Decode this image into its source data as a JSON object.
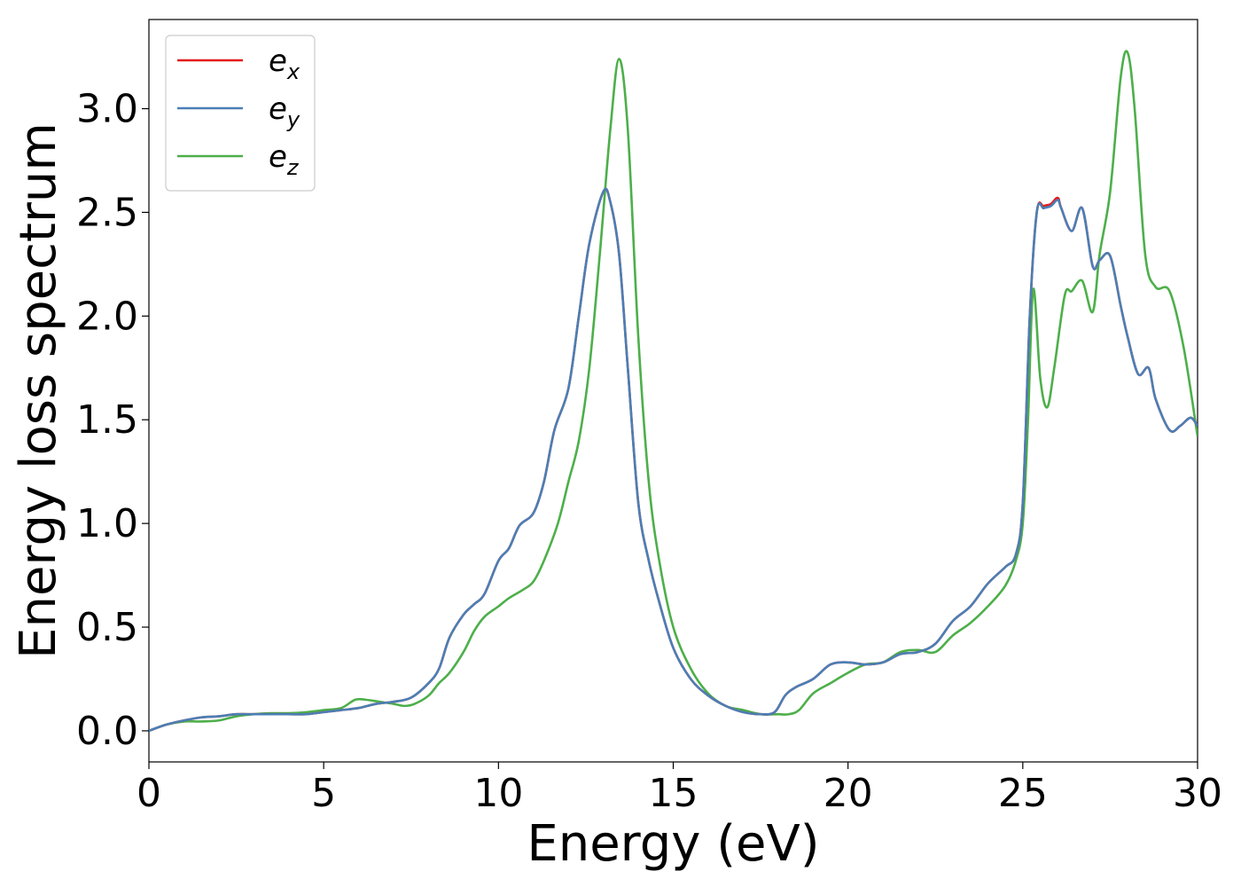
{
  "chart_data": {
    "type": "line",
    "xlabel": "Energy (eV)",
    "ylabel": "Energy loss spectrum",
    "xlim": [
      0,
      30
    ],
    "ylim": [
      -0.15,
      3.43
    ],
    "xticks": [
      "0",
      "5",
      "10",
      "15",
      "20",
      "25",
      "30"
    ],
    "yticks": [
      "0.0",
      "0.5",
      "1.0",
      "1.5",
      "2.0",
      "2.5",
      "3.0"
    ],
    "grid": false,
    "legend_position": "top-left",
    "series": [
      {
        "name": "e_x",
        "legend_base": "e",
        "legend_sub": "x",
        "color": "#e41a1c",
        "x": [
          0,
          0.5,
          1,
          1.5,
          2,
          2.5,
          3,
          3.5,
          4,
          4.5,
          5,
          5.5,
          6,
          6.5,
          7,
          7.5,
          8,
          8.3,
          8.6,
          9,
          9.3,
          9.6,
          10,
          10.3,
          10.6,
          11,
          11.3,
          11.6,
          12,
          12.3,
          12.6,
          13,
          13.2,
          13.45,
          13.7,
          14,
          14.3,
          14.6,
          15,
          15.5,
          16,
          16.5,
          17,
          17.5,
          17.9,
          18.2,
          18.5,
          19,
          19.5,
          20,
          20.5,
          21,
          21.5,
          22,
          22.5,
          23,
          23.5,
          24,
          24.5,
          24.8,
          25,
          25.2,
          25.4,
          25.6,
          25.8,
          26,
          26.1,
          26.4,
          26.7,
          27,
          27.2,
          27.5,
          27.8,
          28,
          28.3,
          28.6,
          28.8,
          29.2,
          29.5,
          29.8,
          30
        ],
        "y": [
          0,
          0.03,
          0.05,
          0.065,
          0.07,
          0.08,
          0.08,
          0.08,
          0.08,
          0.08,
          0.09,
          0.1,
          0.11,
          0.13,
          0.14,
          0.16,
          0.23,
          0.3,
          0.45,
          0.56,
          0.61,
          0.66,
          0.82,
          0.88,
          0.99,
          1.05,
          1.2,
          1.45,
          1.65,
          2.0,
          2.35,
          2.6,
          2.55,
          2.3,
          1.75,
          1.1,
          0.82,
          0.62,
          0.4,
          0.25,
          0.17,
          0.12,
          0.09,
          0.08,
          0.09,
          0.17,
          0.21,
          0.25,
          0.32,
          0.33,
          0.32,
          0.33,
          0.37,
          0.38,
          0.42,
          0.53,
          0.6,
          0.71,
          0.79,
          0.85,
          1.1,
          2.0,
          2.5,
          2.53,
          2.54,
          2.57,
          2.52,
          2.41,
          2.52,
          2.24,
          2.27,
          2.29,
          2.05,
          1.9,
          1.72,
          1.75,
          1.6,
          1.45,
          1.47,
          1.51,
          1.47
        ]
      },
      {
        "name": "e_y",
        "legend_base": "e",
        "legend_sub": "y",
        "color": "#4a7fb5",
        "x": [
          0,
          0.5,
          1,
          1.5,
          2,
          2.5,
          3,
          3.5,
          4,
          4.5,
          5,
          5.5,
          6,
          6.5,
          7,
          7.5,
          8,
          8.3,
          8.6,
          9,
          9.3,
          9.6,
          10,
          10.3,
          10.6,
          11,
          11.3,
          11.6,
          12,
          12.3,
          12.6,
          13,
          13.2,
          13.45,
          13.7,
          14,
          14.3,
          14.6,
          15,
          15.5,
          16,
          16.5,
          17,
          17.5,
          17.9,
          18.2,
          18.5,
          19,
          19.5,
          20,
          20.5,
          21,
          21.5,
          22,
          22.5,
          23,
          23.5,
          24,
          24.5,
          24.8,
          25,
          25.2,
          25.4,
          25.6,
          25.8,
          26,
          26.1,
          26.4,
          26.7,
          27,
          27.2,
          27.5,
          27.8,
          28,
          28.3,
          28.6,
          28.8,
          29.2,
          29.5,
          29.8,
          30
        ],
        "y": [
          0,
          0.03,
          0.05,
          0.065,
          0.07,
          0.08,
          0.08,
          0.08,
          0.08,
          0.08,
          0.09,
          0.1,
          0.11,
          0.13,
          0.14,
          0.16,
          0.23,
          0.3,
          0.45,
          0.56,
          0.61,
          0.66,
          0.82,
          0.88,
          0.99,
          1.05,
          1.2,
          1.45,
          1.65,
          2.0,
          2.35,
          2.6,
          2.55,
          2.3,
          1.75,
          1.1,
          0.82,
          0.62,
          0.4,
          0.25,
          0.17,
          0.12,
          0.09,
          0.08,
          0.09,
          0.17,
          0.21,
          0.25,
          0.32,
          0.33,
          0.32,
          0.33,
          0.37,
          0.38,
          0.42,
          0.53,
          0.6,
          0.71,
          0.79,
          0.85,
          1.1,
          2.0,
          2.5,
          2.52,
          2.53,
          2.56,
          2.52,
          2.41,
          2.52,
          2.24,
          2.27,
          2.29,
          2.05,
          1.9,
          1.72,
          1.75,
          1.6,
          1.45,
          1.47,
          1.51,
          1.47
        ]
      },
      {
        "name": "e_z",
        "legend_base": "e",
        "legend_sub": "z",
        "color": "#4daf4a",
        "x": [
          0,
          0.5,
          1,
          1.5,
          2,
          2.5,
          3,
          3.5,
          4,
          4.5,
          5,
          5.5,
          5.9,
          6.2,
          6.6,
          7,
          7.3,
          7.6,
          8,
          8.3,
          8.6,
          9,
          9.3,
          9.6,
          10,
          10.3,
          10.7,
          11,
          11.3,
          11.7,
          12,
          12.3,
          12.6,
          12.9,
          13.2,
          13.45,
          13.7,
          14,
          14.3,
          14.6,
          15,
          15.5,
          16,
          16.5,
          17,
          17.5,
          18,
          18.3,
          18.6,
          19,
          19.5,
          20,
          20.5,
          21,
          21.5,
          22,
          22.5,
          23,
          23.5,
          24,
          24.5,
          24.8,
          25,
          25.15,
          25.3,
          25.5,
          25.7,
          25.9,
          26.2,
          26.4,
          26.7,
          27,
          27.2,
          27.5,
          27.8,
          28,
          28.2,
          28.5,
          28.8,
          29.2,
          29.6,
          30
        ],
        "y": [
          0,
          0.03,
          0.045,
          0.045,
          0.05,
          0.07,
          0.08,
          0.085,
          0.085,
          0.09,
          0.1,
          0.11,
          0.15,
          0.15,
          0.14,
          0.13,
          0.12,
          0.13,
          0.17,
          0.23,
          0.28,
          0.38,
          0.48,
          0.55,
          0.6,
          0.64,
          0.68,
          0.72,
          0.82,
          1.0,
          1.2,
          1.4,
          1.75,
          2.3,
          2.9,
          3.24,
          2.9,
          1.9,
          1.2,
          0.82,
          0.5,
          0.3,
          0.18,
          0.12,
          0.1,
          0.08,
          0.08,
          0.08,
          0.1,
          0.18,
          0.23,
          0.28,
          0.32,
          0.33,
          0.38,
          0.39,
          0.38,
          0.46,
          0.52,
          0.6,
          0.7,
          0.82,
          1.0,
          1.5,
          2.13,
          1.7,
          1.56,
          1.75,
          2.1,
          2.12,
          2.17,
          2.02,
          2.3,
          2.6,
          3.15,
          3.27,
          3.0,
          2.3,
          2.14,
          2.12,
          1.85,
          1.42
        ]
      }
    ]
  }
}
